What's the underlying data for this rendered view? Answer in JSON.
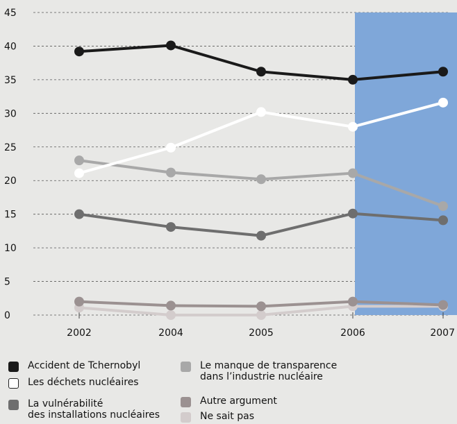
{
  "chart_data": {
    "type": "line",
    "title": "",
    "xlabel": "",
    "ylabel": "",
    "x": [
      "2002",
      "2004",
      "2005",
      "2006",
      "2007"
    ],
    "ylim": [
      0,
      45
    ],
    "yticks": [
      0,
      5,
      10,
      15,
      20,
      25,
      30,
      35,
      40,
      45
    ],
    "grid": true,
    "highlight_range": [
      "2006",
      "2007"
    ],
    "highlight_color": "#7fa7d9",
    "series": [
      {
        "name": "Accident de Tchernobyl",
        "values": [
          39.2,
          40.1,
          36.2,
          35.0,
          36.2
        ],
        "color": "#1a1a1a",
        "marker_fill": "#1a1a1a"
      },
      {
        "name": "Les déchets nucléaires",
        "values": [
          21.1,
          24.9,
          30.2,
          28.0,
          31.6
        ],
        "color": "#ffffff",
        "marker_fill": "#ffffff"
      },
      {
        "name": "Le manque de transparence\ndans l’industrie nucléaire",
        "values": [
          23.0,
          21.2,
          20.2,
          21.1,
          16.2
        ],
        "color": "#a8a8a8",
        "marker_fill": "#a8a8a8"
      },
      {
        "name": "La vulnérabilité\ndes installations nucléaires",
        "values": [
          15.0,
          13.1,
          11.8,
          15.1,
          14.1
        ],
        "color": "#6e6e6e",
        "marker_fill": "#6e6e6e"
      },
      {
        "name": "Autre argument",
        "values": [
          2.0,
          1.4,
          1.3,
          2.0,
          1.5
        ],
        "color": "#9b9191",
        "marker_fill": "#9b9191"
      },
      {
        "name": "Ne sait pas",
        "values": [
          1.1,
          0.0,
          0.0,
          1.3,
          1.3
        ],
        "color": "#d3cccc",
        "marker_fill": "#d3cccc"
      }
    ]
  },
  "legend": {
    "items": [
      {
        "label": "Accident de Tchernobyl",
        "color": "#1a1a1a",
        "outline": false
      },
      {
        "label": "Les déchets nucléaires",
        "color": "#ffffff",
        "outline": true
      },
      {
        "label": "La vulnérabilité\ndes installations nucléaires",
        "color": "#6e6e6e",
        "outline": false
      },
      {
        "label": "Le manque de transparence\ndans l’industrie nucléaire",
        "color": "#a8a8a8",
        "outline": false
      },
      {
        "label": "Autre argument",
        "color": "#9b9191",
        "outline": false
      },
      {
        "label": "Ne sait pas",
        "color": "#d3cccc",
        "outline": false
      }
    ]
  }
}
